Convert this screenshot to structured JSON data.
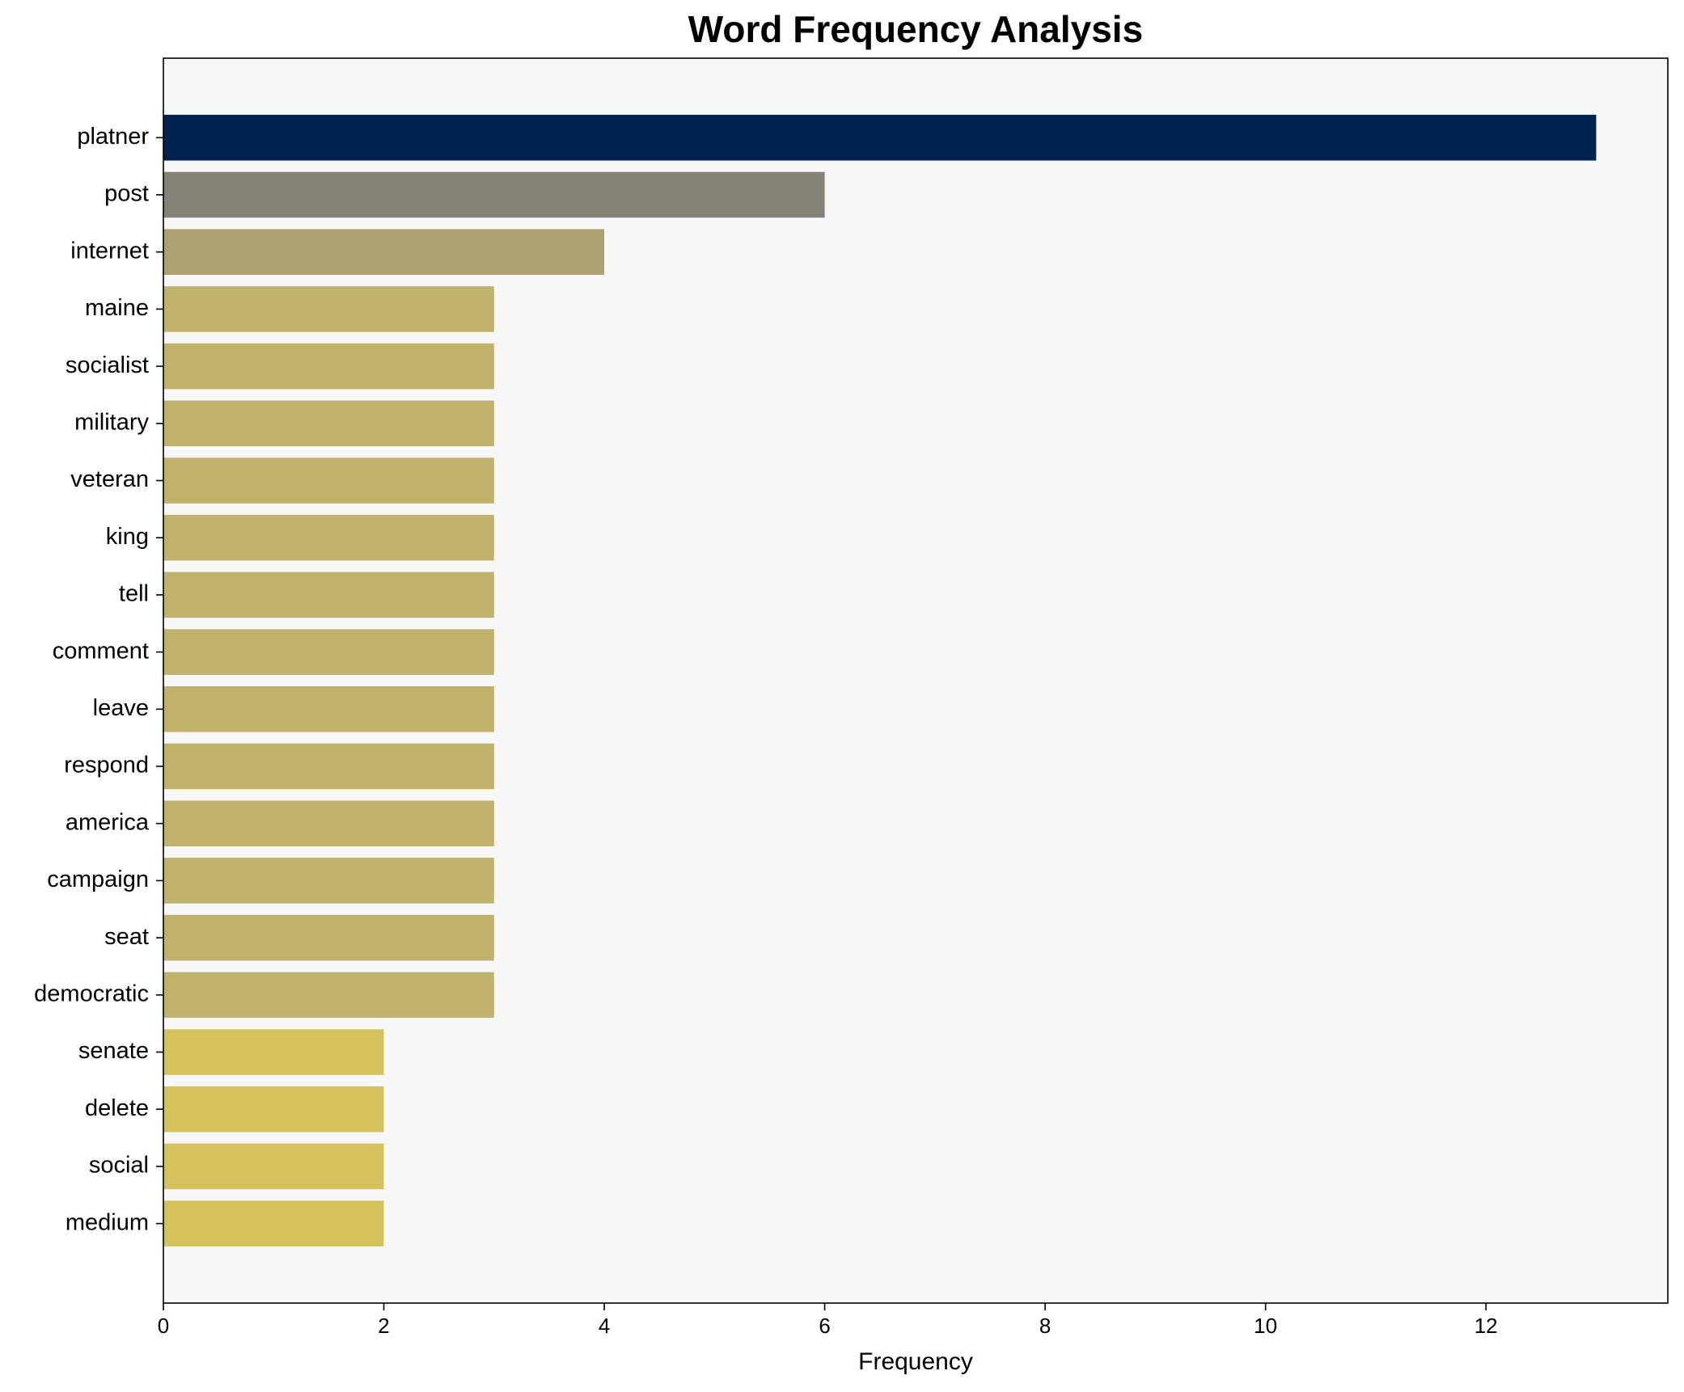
{
  "chart_data": {
    "type": "barh",
    "title": "Word Frequency Analysis",
    "x_label": "Frequency",
    "categories": [
      "platner",
      "post",
      "internet",
      "maine",
      "socialist",
      "military",
      "veteran",
      "king",
      "tell",
      "comment",
      "leave",
      "respond",
      "america",
      "campaign",
      "seat",
      "democratic",
      "senate",
      "delete",
      "social",
      "medium"
    ],
    "values": [
      13,
      6,
      4,
      3,
      3,
      3,
      3,
      3,
      3,
      3,
      3,
      3,
      3,
      3,
      3,
      3,
      2,
      2,
      2,
      2
    ],
    "colors": [
      "#00224e",
      "#858278",
      "#ada172",
      "#c1b16b",
      "#c1b16b",
      "#c1b16b",
      "#c1b16b",
      "#c1b16b",
      "#c1b16b",
      "#c1b16b",
      "#c1b16b",
      "#c1b16b",
      "#c1b16b",
      "#c1b16b",
      "#c1b16b",
      "#c1b16b",
      "#d5c25e",
      "#d5c25e",
      "#d5c25e",
      "#d5c25e"
    ],
    "xlim": [
      0,
      13.65
    ],
    "xticks": [
      0,
      2,
      4,
      6,
      8,
      10,
      12
    ]
  }
}
